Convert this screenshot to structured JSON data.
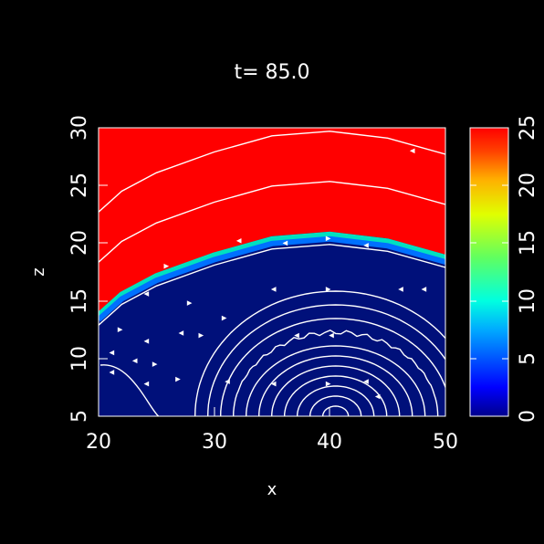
{
  "chart_data": {
    "type": "heatmap",
    "title": "t=  85.0",
    "xlabel": "x",
    "ylabel": "z",
    "xlim": [
      20,
      50
    ],
    "ylim": [
      5,
      30
    ],
    "x_ticks": [
      "20",
      "30",
      "40",
      "50"
    ],
    "y_ticks": [
      "5",
      "10",
      "15",
      "20",
      "25",
      "30"
    ],
    "colorbar": {
      "range": [
        0,
        25
      ],
      "ticks": [
        "0",
        "5",
        "10",
        "15",
        "20",
        "25"
      ]
    },
    "field": {
      "saturated_value": 25,
      "low_value": 1.5,
      "interface_z_at_x": [
        {
          "x": 20,
          "z": 14.0
        },
        {
          "x": 22,
          "z": 15.8
        },
        {
          "x": 25,
          "z": 17.4
        },
        {
          "x": 30,
          "z": 19.2
        },
        {
          "x": 35,
          "z": 20.6
        },
        {
          "x": 40,
          "z": 21.0
        },
        {
          "x": 45,
          "z": 20.4
        },
        {
          "x": 50,
          "z": 19.0
        }
      ]
    },
    "contour_center": {
      "x": 40.5,
      "z": 5.0
    },
    "grid": false,
    "legend": "colorbar-right"
  }
}
